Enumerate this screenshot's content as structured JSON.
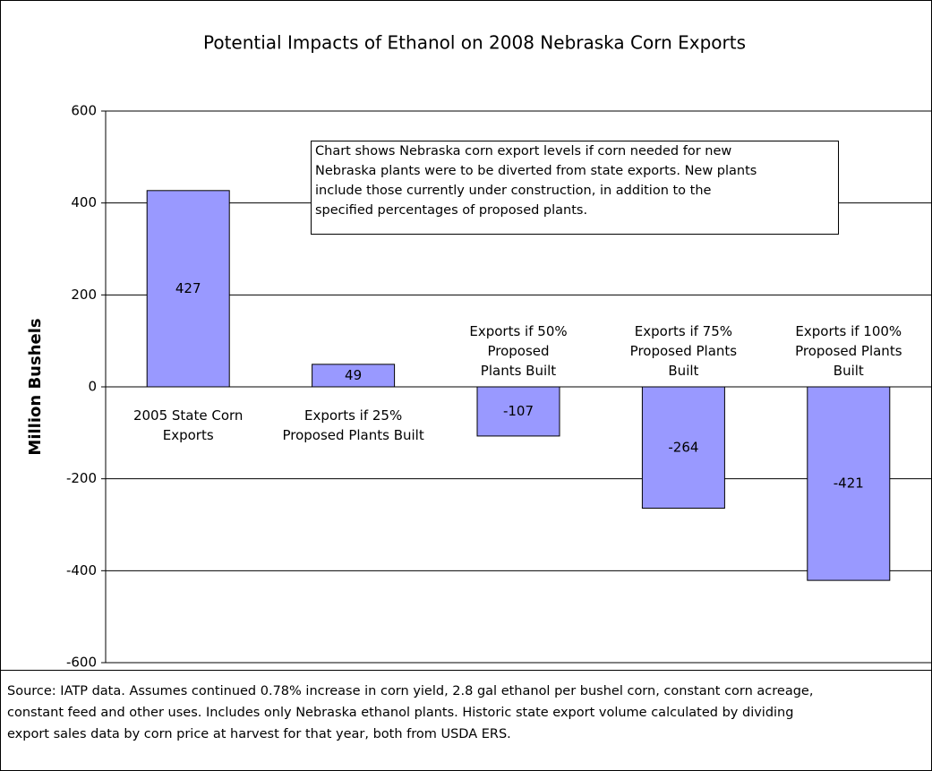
{
  "chart_data": {
    "type": "bar",
    "title": "Potential Impacts of Ethanol on 2008 Nebraska Corn Exports",
    "y_label": "Million Bushels",
    "categories": [
      "2005 State Corn\nExports",
      "Exports if 25%\nProposed Plants Built",
      "Exports if 50%\nProposed\nPlants Built",
      "Exports if 75%\nProposed Plants\nBuilt",
      "Exports if 100%\nProposed Plants\nBuilt"
    ],
    "values": [
      427,
      49,
      -107,
      -264,
      -421
    ],
    "color": "#9999ff",
    "ylim": [
      -600,
      600
    ],
    "yticks": [
      -600,
      -400,
      -200,
      0,
      200,
      400,
      600
    ],
    "grid": true,
    "annotation": "Chart shows Nebraska corn export levels if corn needed for new\nNebraska plants were to be diverted from state exports. New plants\ninclude those currently under construction, in addition to the\nspecified percentages of proposed plants.",
    "source": "Source: IATP data. Assumes continued 0.78% increase in corn yield, 2.8 gal ethanol per bushel corn, constant corn acreage,\nconstant feed and other uses. Includes only Nebraska ethanol plants. Historic state export volume calculated by dividing\nexport sales data by corn price at harvest for that year, both from USDA ERS."
  }
}
